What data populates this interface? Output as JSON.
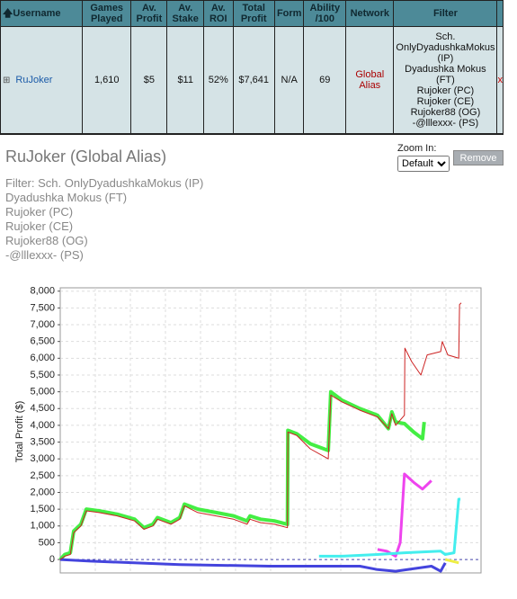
{
  "table": {
    "headers": [
      "Username",
      "Games Played",
      "Av. Profit",
      "Av. Stake",
      "Av. ROI",
      "Total Profit",
      "Form",
      "Ability /100",
      "Network",
      "Filter"
    ],
    "rows": [
      [
        "RuJoker",
        "1,610",
        "$5",
        "$11",
        "52%",
        "$7,641",
        "N/A",
        "69",
        "Global Alias",
        [
          "Sch. OnlyDyadushkaMokus (IP)",
          "Dyadushka Mokus (FT)",
          "Rujoker (PC)",
          "Rujoker (CE)",
          "Rujoker88 (OG)",
          "-@lllexxx- (PS)"
        ],
        "x"
      ]
    ]
  },
  "heading": "RuJoker (Global Alias)",
  "filter_lines": [
    "Filter: Sch. OnlyDyadushkaMokus (IP)",
    "Dyadushka Mokus (FT)",
    "Rujoker (PC)",
    "Rujoker (CE)",
    "Rujoker88 (OG)",
    "-@lllexxx- (PS)"
  ],
  "zoom_label": "Zoom In:",
  "zoom_option": "Default",
  "remove_button": "Remove",
  "chart_data": {
    "type": "line",
    "ylabel": "Total Profit ($)",
    "xlim": [
      0,
      100
    ],
    "ylim": [
      -400,
      8100
    ],
    "grid": true,
    "yticks": [
      0,
      500,
      {
        "value": 1000,
        "label": "1,000"
      },
      {
        "value": 1500,
        "label": "1,500"
      },
      {
        "value": 2000,
        "label": "2,000"
      },
      {
        "value": 2500,
        "label": "2,500"
      },
      {
        "value": 3000,
        "label": "3,000"
      },
      {
        "value": 3500,
        "label": "3,500"
      },
      {
        "value": 4000,
        "label": "4,000"
      },
      {
        "value": 4500,
        "label": "4,500"
      },
      {
        "value": 5000,
        "label": "5,000"
      },
      {
        "value": 5500,
        "label": "5,500"
      },
      {
        "value": 6000,
        "label": "6,000"
      },
      {
        "value": 6500,
        "label": "6,500"
      },
      {
        "value": 7000,
        "label": "7,000"
      },
      {
        "value": 7500,
        "label": "7,500"
      },
      {
        "value": 8000,
        "label": "8,000"
      }
    ],
    "series": [
      {
        "color": "#44ee44",
        "width": 4,
        "x": [
          0,
          1.1,
          2.4,
          3.2,
          4.9,
          6.2,
          9.2,
          13.5,
          17.7,
          19.9,
          22.0,
          23.1,
          26.3,
          28.4,
          29.5,
          32.7,
          37.0,
          41.2,
          44.4,
          45.1,
          47.6,
          50.9,
          54.0,
          54.1,
          56.2,
          59.4,
          63.7,
          64.3,
          66.9,
          71.2,
          75.4,
          78.0,
          78.8,
          79.7,
          81.8,
          84.0,
          86.1,
          86.5
        ],
        "values": [
          0,
          150,
          200,
          850,
          1050,
          1500,
          1450,
          1350,
          1200,
          950,
          1050,
          1250,
          1100,
          1250,
          1650,
          1500,
          1400,
          1300,
          1150,
          1300,
          1200,
          1150,
          1050,
          3850,
          3750,
          3450,
          3250,
          5000,
          4750,
          4500,
          4300,
          3900,
          4400,
          4100,
          4050,
          3800,
          3600,
          4100
        ]
      },
      {
        "color": "#ee44ee",
        "width": 3,
        "x": [
          75.4,
          77.6,
          79.7,
          80.8,
          81.8,
          84.0,
          86.1,
          88.2
        ],
        "values": [
          300,
          250,
          100,
          500,
          2550,
          2300,
          2100,
          2350
        ]
      },
      {
        "color": "#44eeee",
        "width": 3,
        "x": [
          61.5,
          66.9,
          75.4,
          81.8,
          90.4,
          91.5,
          93.6,
          94.7,
          95.1
        ],
        "values": [
          100,
          100,
          150,
          200,
          250,
          150,
          200,
          1800,
          1800
        ]
      },
      {
        "color": "#4444dd",
        "width": 3,
        "x": [
          0,
          7.1,
          28.4,
          49.8,
          71.2,
          75.4,
          79.7,
          88.2,
          90.4,
          91.5
        ],
        "values": [
          0,
          -50,
          -150,
          -200,
          -200,
          -300,
          -350,
          -200,
          -350,
          -100
        ]
      },
      {
        "color": "#eeee44",
        "width": 3,
        "x": [
          91.5,
          94.7
        ],
        "values": [
          0,
          -100
        ]
      },
      {
        "color": "#cc2222",
        "width": 1,
        "x": [
          0,
          1.1,
          2.4,
          3.2,
          4.9,
          6.2,
          9.2,
          13.5,
          17.7,
          19.9,
          22.0,
          23.1,
          26.3,
          28.4,
          29.5,
          32.7,
          37.0,
          41.2,
          44.4,
          45.1,
          47.6,
          50.9,
          54.0,
          54.1,
          56.2,
          59.4,
          63.7,
          64.3,
          66.9,
          71.2,
          75.4,
          78.0,
          78.8,
          79.7,
          81.8,
          81.9,
          83.5,
          85.7,
          87.2,
          90.4,
          90.8,
          92.1,
          94.7,
          94.9,
          95.3
        ],
        "values": [
          0,
          100,
          150,
          800,
          1000,
          1450,
          1400,
          1300,
          1150,
          900,
          1000,
          1200,
          1050,
          1200,
          1600,
          1400,
          1300,
          1200,
          1050,
          1200,
          1100,
          1050,
          950,
          3800,
          3700,
          3300,
          3000,
          4900,
          4700,
          4450,
          4250,
          3900,
          4350,
          4000,
          4300,
          6300,
          5900,
          5500,
          6100,
          6200,
          6500,
          6100,
          6000,
          7600,
          7650
        ]
      }
    ]
  }
}
